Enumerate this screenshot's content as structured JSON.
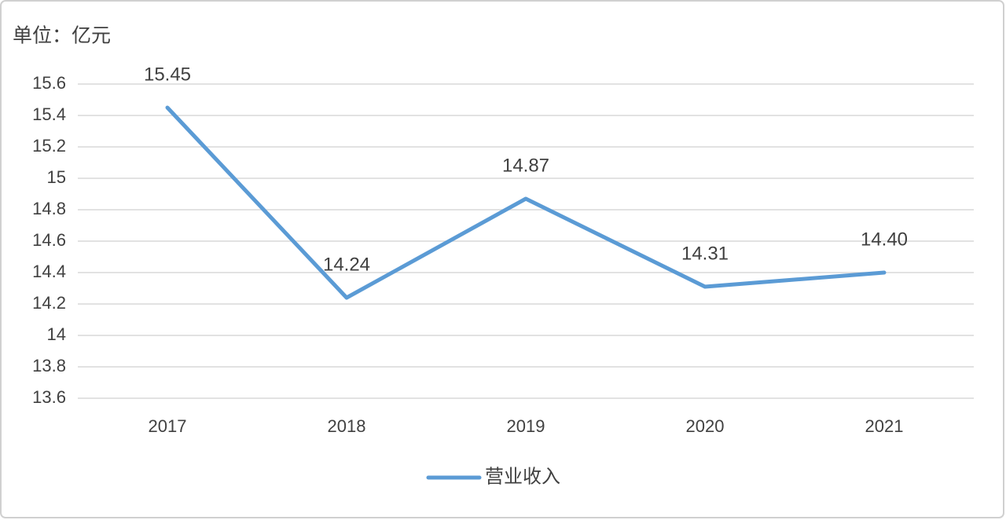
{
  "chart_data": {
    "type": "line",
    "y_label": "单位：亿元",
    "categories": [
      "2017",
      "2018",
      "2019",
      "2020",
      "2021"
    ],
    "series": [
      {
        "name": "营业收入",
        "color": "#5b9bd5",
        "values": [
          15.45,
          14.24,
          14.87,
          14.31,
          14.4
        ],
        "value_labels": [
          "15.45",
          "14.24",
          "14.87",
          "14.31",
          "14.40"
        ]
      }
    ],
    "ylim": [
      13.6,
      15.6
    ],
    "yticks": [
      13.6,
      13.8,
      14,
      14.2,
      14.4,
      14.6,
      14.8,
      15,
      15.2,
      15.4,
      15.6
    ],
    "grid": true,
    "legend": "bottom"
  }
}
